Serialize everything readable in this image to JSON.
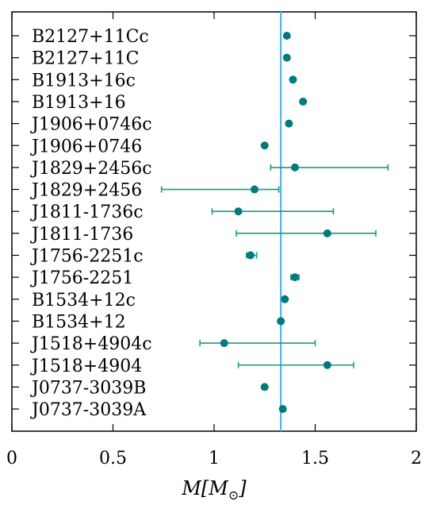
{
  "chart_data": {
    "type": "scatter",
    "orientation": "horizontal",
    "title": "",
    "xlabel": "M[M⊙]",
    "xlabel_parts": {
      "main": "M[M",
      "sub": "⊙",
      "close": "]"
    },
    "xlim": [
      0,
      2
    ],
    "xticks": [
      0,
      0.5,
      1,
      1.5,
      2
    ],
    "xtick_labels": [
      "0",
      "0.5",
      "1",
      "1.5",
      "2"
    ],
    "reference_line": {
      "x": 1.33,
      "color": "#56b4e9"
    },
    "point_color": "#007b7b",
    "errorbar_color": "#1a9a7a",
    "grid": false,
    "points": [
      {
        "label": "B2127+11Cc",
        "value": 1.36,
        "err_low": null,
        "err_high": null
      },
      {
        "label": "B2127+11C",
        "value": 1.36,
        "err_low": null,
        "err_high": null
      },
      {
        "label": "B1913+16c",
        "value": 1.39,
        "err_low": null,
        "err_high": null
      },
      {
        "label": "B1913+16",
        "value": 1.44,
        "err_low": null,
        "err_high": null
      },
      {
        "label": "J1906+0746c",
        "value": 1.37,
        "err_low": null,
        "err_high": null
      },
      {
        "label": "J1906+0746",
        "value": 1.25,
        "err_low": null,
        "err_high": null
      },
      {
        "label": "J1829+2456c",
        "value": 1.4,
        "err_low": 1.28,
        "err_high": 1.86
      },
      {
        "label": "J1829+2456",
        "value": 1.2,
        "err_low": 0.74,
        "err_high": 1.32
      },
      {
        "label": "J1811-1736c",
        "value": 1.12,
        "err_low": 0.99,
        "err_high": 1.59
      },
      {
        "label": "J1811-1736",
        "value": 1.56,
        "err_low": 1.11,
        "err_high": 1.8
      },
      {
        "label": "J1756-2251c",
        "value": 1.18,
        "err_low": 1.16,
        "err_high": 1.21
      },
      {
        "label": "J1756-2251",
        "value": 1.4,
        "err_low": 1.38,
        "err_high": 1.42
      },
      {
        "label": "B1534+12c",
        "value": 1.35,
        "err_low": null,
        "err_high": null
      },
      {
        "label": "B1534+12",
        "value": 1.33,
        "err_low": null,
        "err_high": null
      },
      {
        "label": "J1518+4904c",
        "value": 1.05,
        "err_low": 0.93,
        "err_high": 1.5
      },
      {
        "label": "J1518+4904",
        "value": 1.56,
        "err_low": 1.12,
        "err_high": 1.69
      },
      {
        "label": "J0737-3039B",
        "value": 1.25,
        "err_low": null,
        "err_high": null
      },
      {
        "label": "J0737-3039A",
        "value": 1.34,
        "err_low": null,
        "err_high": null
      }
    ]
  }
}
